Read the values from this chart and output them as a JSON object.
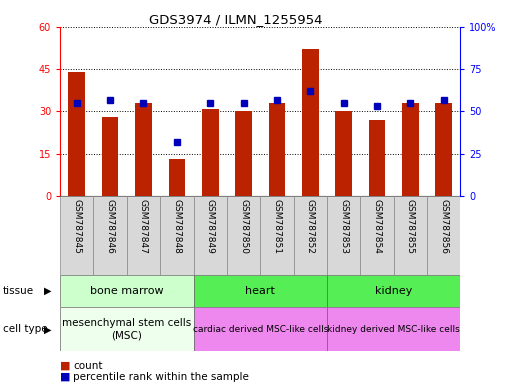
{
  "title": "GDS3974 / ILMN_1255954",
  "samples": [
    "GSM787845",
    "GSM787846",
    "GSM787847",
    "GSM787848",
    "GSM787849",
    "GSM787850",
    "GSM787851",
    "GSM787852",
    "GSM787853",
    "GSM787854",
    "GSM787855",
    "GSM787856"
  ],
  "counts": [
    44,
    28,
    33,
    13,
    31,
    30,
    33,
    52,
    30,
    27,
    33,
    33
  ],
  "percentile_ranks": [
    55,
    57,
    55,
    32,
    55,
    55,
    57,
    62,
    55,
    53,
    55,
    57
  ],
  "ylim_left": [
    0,
    60
  ],
  "ylim_right": [
    0,
    100
  ],
  "yticks_left": [
    0,
    15,
    30,
    45,
    60
  ],
  "yticks_right": [
    0,
    25,
    50,
    75,
    100
  ],
  "bar_color": "#bb2200",
  "dot_color": "#0000bb",
  "tissue_groups": [
    {
      "label": "bone marrow",
      "start": 0,
      "end": 3,
      "color": "#ccffcc"
    },
    {
      "label": "heart",
      "start": 4,
      "end": 7,
      "color": "#55ee55"
    },
    {
      "label": "kidney",
      "start": 8,
      "end": 11,
      "color": "#55ee55"
    }
  ],
  "cell_type_groups": [
    {
      "label": "mesenchymal stem cells\n(MSC)",
      "start": 0,
      "end": 3,
      "color": "#eeffee"
    },
    {
      "label": "cardiac derived MSC-like cells",
      "start": 4,
      "end": 7,
      "color": "#ee88ee"
    },
    {
      "label": "kidney derived MSC-like cells",
      "start": 8,
      "end": 11,
      "color": "#ee88ee"
    }
  ],
  "legend_count_label": "count",
  "legend_pct_label": "percentile rank within the sample",
  "tissue_label": "tissue",
  "cell_type_label": "cell type",
  "sample_box_color": "#d8d8d8",
  "bar_width": 0.5
}
